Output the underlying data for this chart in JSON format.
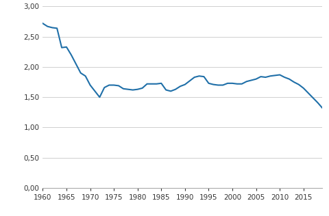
{
  "title": "",
  "line_color": "#1f6fa8",
  "line_width": 1.5,
  "background_color": "#ffffff",
  "grid_color": "#c8c8c8",
  "xlim": [
    1960,
    2019
  ],
  "ylim": [
    0.0,
    3.0
  ],
  "xticks": [
    1960,
    1965,
    1970,
    1975,
    1980,
    1985,
    1990,
    1995,
    2000,
    2005,
    2010,
    2015
  ],
  "yticks": [
    0.0,
    0.5,
    1.0,
    1.5,
    2.0,
    2.5,
    3.0
  ],
  "ytick_labels": [
    "0,00",
    "0,50",
    "1,00",
    "1,50",
    "2,00",
    "2,50",
    "3,00"
  ],
  "data": {
    "1960": 2.72,
    "1961": 2.67,
    "1962": 2.65,
    "1963": 2.64,
    "1964": 2.32,
    "1965": 2.33,
    "1966": 2.2,
    "1967": 2.05,
    "1968": 1.9,
    "1969": 1.85,
    "1970": 1.7,
    "1971": 1.6,
    "1972": 1.5,
    "1973": 1.66,
    "1974": 1.7,
    "1975": 1.7,
    "1976": 1.69,
    "1977": 1.64,
    "1978": 1.63,
    "1979": 1.62,
    "1980": 1.63,
    "1981": 1.65,
    "1982": 1.72,
    "1983": 1.72,
    "1984": 1.72,
    "1985": 1.73,
    "1986": 1.62,
    "1987": 1.6,
    "1988": 1.63,
    "1989": 1.68,
    "1990": 1.71,
    "1991": 1.77,
    "1992": 1.83,
    "1993": 1.85,
    "1994": 1.84,
    "1995": 1.73,
    "1996": 1.71,
    "1997": 1.7,
    "1998": 1.7,
    "1999": 1.73,
    "2000": 1.73,
    "2001": 1.72,
    "2002": 1.72,
    "2003": 1.76,
    "2004": 1.78,
    "2005": 1.8,
    "2006": 1.84,
    "2007": 1.83,
    "2008": 1.85,
    "2009": 1.86,
    "2010": 1.87,
    "2011": 1.83,
    "2012": 1.8,
    "2013": 1.75,
    "2014": 1.71,
    "2015": 1.65,
    "2016": 1.57,
    "2017": 1.49,
    "2018": 1.41,
    "2019": 1.32
  }
}
